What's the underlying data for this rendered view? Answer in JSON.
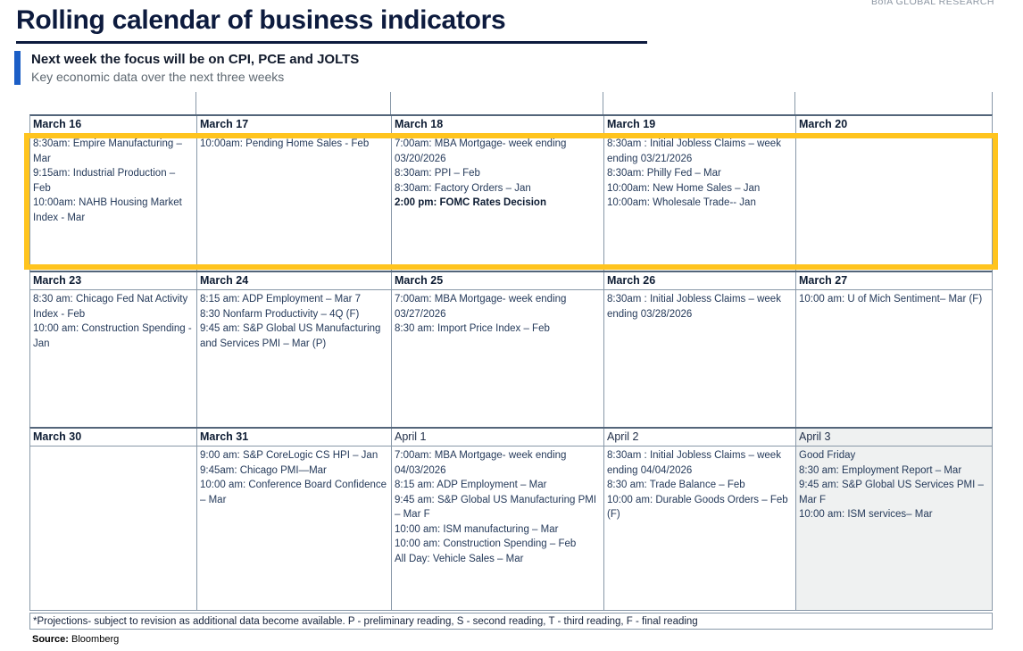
{
  "brand": "BofA GLOBAL RESEARCH",
  "title": "Rolling calendar of business indicators",
  "headline": "Next week the focus will be on CPI, PCE and JOLTS",
  "subheadline": "Key economic data over the next three weeks",
  "footnote": "*Projections- subject to revision as additional data become available. P - preliminary reading, S - second reading, T - third reading, F - final reading",
  "source_label": "Source:",
  "source_value": "Bloomberg",
  "colors": {
    "accent_blue": "#1B5EC6",
    "title_navy": "#0D1B3E",
    "body_navy": "#253A5A",
    "highlight_yellow": "#FFC41E",
    "grid_gray": "#8898A8",
    "cell_gray_bg": "#EFF1F1"
  },
  "calendar": {
    "highlighted_week_index": 0,
    "weeks": [
      {
        "days": [
          {
            "date": "March 16",
            "bold_date": true,
            "gray_bg": false,
            "events": [
              {
                "text": "8:30am: Empire Manufacturing – Mar",
                "bold": false
              },
              {
                "text": "9:15am: Industrial Production – Feb",
                "bold": false
              },
              {
                "text": "10:00am: NAHB Housing Market Index - Mar",
                "bold": false
              }
            ]
          },
          {
            "date": "March 17",
            "bold_date": true,
            "gray_bg": false,
            "events": [
              {
                "text": "10:00am: Pending Home Sales - Feb",
                "bold": false
              }
            ]
          },
          {
            "date": "March 18",
            "bold_date": true,
            "gray_bg": false,
            "events": [
              {
                "text": "7:00am: MBA Mortgage- week ending 03/20/2026",
                "bold": false
              },
              {
                "text": "8:30am: PPI – Feb",
                "bold": false
              },
              {
                "text": "8:30am: Factory Orders – Jan",
                "bold": false
              },
              {
                "text": "2:00 pm: FOMC Rates Decision",
                "bold": true
              }
            ]
          },
          {
            "date": "March 19",
            "bold_date": true,
            "gray_bg": false,
            "events": [
              {
                "text": "8:30am : Initial Jobless Claims – week ending 03/21/2026",
                "bold": false
              },
              {
                "text": "8:30am: Philly Fed – Mar",
                "bold": false
              },
              {
                "text": "10:00am: New Home Sales – Jan",
                "bold": false
              },
              {
                "text": "10:00am: Wholesale Trade-- Jan",
                "bold": false
              }
            ]
          },
          {
            "date": "March 20",
            "bold_date": true,
            "gray_bg": false,
            "events": []
          }
        ]
      },
      {
        "days": [
          {
            "date": "March 23",
            "bold_date": true,
            "gray_bg": false,
            "events": [
              {
                "text": "8:30 am: Chicago Fed Nat Activity Index - Feb",
                "bold": false
              },
              {
                "text": "10:00 am: Construction Spending - Jan",
                "bold": false
              }
            ]
          },
          {
            "date": "March 24",
            "bold_date": true,
            "gray_bg": false,
            "events": [
              {
                "text": "8:15 am: ADP Employment – Mar 7",
                "bold": false
              },
              {
                "text": "8:30 Nonfarm Productivity – 4Q (F)",
                "bold": false
              },
              {
                "text": "9:45 am: S&P Global US Manufacturing and Services PMI – Mar (P)",
                "bold": false
              }
            ]
          },
          {
            "date": "March 25",
            "bold_date": true,
            "gray_bg": false,
            "events": [
              {
                "text": "7:00am: MBA Mortgage- week ending 03/27/2026",
                "bold": false
              },
              {
                "text": "8:30 am: Import Price Index – Feb",
                "bold": false
              }
            ]
          },
          {
            "date": "March 26",
            "bold_date": true,
            "gray_bg": false,
            "events": [
              {
                "text": "8:30am : Initial Jobless Claims – week ending 03/28/2026",
                "bold": false
              }
            ]
          },
          {
            "date": "March 27",
            "bold_date": true,
            "gray_bg": false,
            "events": [
              {
                "text": "10:00 am: U of Mich Sentiment– Mar (F)",
                "bold": false
              }
            ]
          }
        ]
      },
      {
        "days": [
          {
            "date": "March 30",
            "bold_date": true,
            "gray_bg": false,
            "events": []
          },
          {
            "date": "March 31",
            "bold_date": true,
            "gray_bg": false,
            "events": [
              {
                "text": "9:00 am: S&P CoreLogic CS HPI – Jan",
                "bold": false
              },
              {
                "text": "9:45am: Chicago PMI—Mar",
                "bold": false
              },
              {
                "text": "10:00 am: Conference Board Confidence – Mar",
                "bold": false
              }
            ]
          },
          {
            "date": "April 1",
            "bold_date": false,
            "gray_bg": false,
            "events": [
              {
                "text": "7:00am: MBA Mortgage- week ending 04/03/2026",
                "bold": false
              },
              {
                "text": "8:15 am: ADP Employment – Mar",
                "bold": false
              },
              {
                "text": "9:45 am: S&P Global US Manufacturing PMI – Mar F",
                "bold": false
              },
              {
                "text": "10:00 am: ISM manufacturing – Mar",
                "bold": false
              },
              {
                "text": "10:00 am: Construction Spending – Feb",
                "bold": false
              },
              {
                "text": "All Day: Vehicle Sales – Mar",
                "bold": false
              }
            ]
          },
          {
            "date": "April 2",
            "bold_date": false,
            "gray_bg": false,
            "events": [
              {
                "text": "8:30am : Initial Jobless Claims – week ending 04/04/2026",
                "bold": false
              },
              {
                "text": "8:30 am: Trade Balance – Feb",
                "bold": false
              },
              {
                "text": "10:00 am: Durable Goods Orders – Feb (F)",
                "bold": false
              }
            ]
          },
          {
            "date": "April 3",
            "bold_date": false,
            "gray_bg": true,
            "events": [
              {
                "text": "Good Friday",
                "bold": false
              },
              {
                "text": "8:30 am: Employment Report – Mar",
                "bold": false
              },
              {
                "text": "9:45 am: S&P Global US Services PMI – Mar F",
                "bold": false
              },
              {
                "text": "10:00 am: ISM services– Mar",
                "bold": false
              }
            ]
          }
        ]
      }
    ]
  }
}
